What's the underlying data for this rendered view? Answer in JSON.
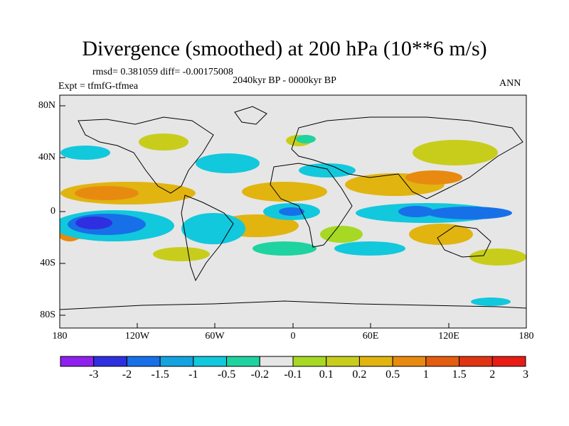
{
  "header": {
    "title": "Divergence (smoothed) at 200 hPa (10**6 m/s)",
    "stats": "rmsd= 0.381059 diff= -0.00175008",
    "period": "2040kyr BP - 0000kyr BP",
    "experiment": "Expt = tfmfG-tfmea",
    "season": "ANN"
  },
  "map": {
    "projection": "cylindrical equidistant",
    "lon_range": [
      -180,
      180
    ],
    "lat_range": [
      -90,
      90
    ],
    "lat_ticks": [
      "80N",
      "40N",
      "0",
      "40S",
      "80S"
    ],
    "lon_ticks": [
      "180",
      "120W",
      "60W",
      "0",
      "60E",
      "120E",
      "180"
    ],
    "background_color": "#e6e6e6",
    "coastline_color": "#000000"
  },
  "colorbar": {
    "colors": [
      "#8f20ee",
      "#2f2fe0",
      "#1870e8",
      "#14a2e0",
      "#12c8dc",
      "#1ed3a0",
      "#e6e6e6",
      "#a6d824",
      "#c8cd1c",
      "#e1b410",
      "#e88a10",
      "#e45c10",
      "#e03412",
      "#e81c14"
    ],
    "labels": [
      "-3",
      "-2",
      "-1.5",
      "-1",
      "-0.5",
      "-0.2",
      "-0.1",
      "0.1",
      "0.2",
      "0.5",
      "1",
      "1.5",
      "2",
      "3"
    ]
  }
}
